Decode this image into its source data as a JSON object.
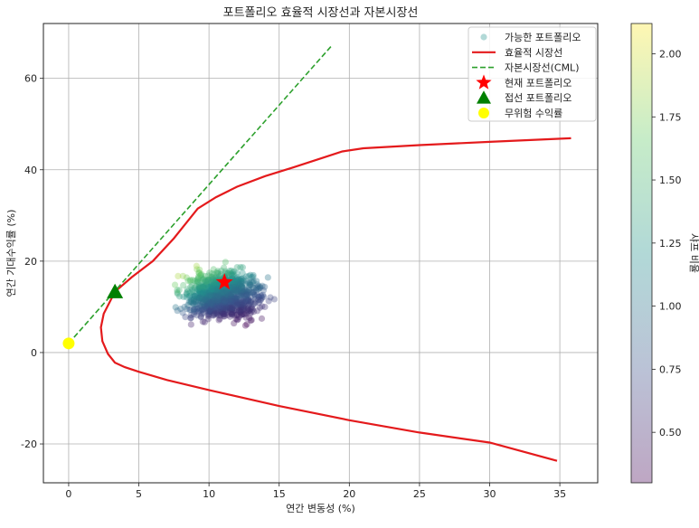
{
  "chart_data": {
    "type": "scatter",
    "title": "포트폴리오 효율적 시장선과 자본시장선",
    "xlabel": "연간 변동성 (%)",
    "ylabel": "연간 기대수익률 (%)",
    "xlim": [
      -1.8,
      37.7
    ],
    "ylim": [
      -28.5,
      72
    ],
    "xticks": [
      0,
      5,
      10,
      15,
      20,
      25,
      30,
      35
    ],
    "yticks": [
      -20,
      0,
      20,
      40,
      60
    ],
    "grid": true,
    "legend": {
      "placement": "top-right",
      "entries": [
        "가능한 포트폴리오",
        "효율적 시장선",
        "자본시장선(CML)",
        "현재 포트폴리오",
        "접선 포트폴리오",
        "무위험 수익률"
      ]
    },
    "colorbar": {
      "label": "샤프 비율",
      "range": [
        0.3,
        2.12
      ],
      "ticks": [
        "0.50",
        "0.75",
        "1.00",
        "1.25",
        "1.50",
        "1.75",
        "2.00"
      ],
      "colormap": "viridis"
    },
    "series": [
      {
        "name": "효율적 시장선",
        "type": "line",
        "color": "#e41a1c",
        "points": [
          [
            34.8,
            -23.7
          ],
          [
            30,
            -19.7
          ],
          [
            25,
            -17.5
          ],
          [
            20,
            -14.8
          ],
          [
            15,
            -11.7
          ],
          [
            10,
            -8.2
          ],
          [
            7,
            -6
          ],
          [
            5,
            -4.2
          ],
          [
            4,
            -3.2
          ],
          [
            3.3,
            -2.2
          ],
          [
            2.8,
            -0.3
          ],
          [
            2.4,
            2.5
          ],
          [
            2.3,
            5.5
          ],
          [
            2.5,
            8.5
          ],
          [
            3,
            11.5
          ],
          [
            3.3,
            13.3
          ],
          [
            4.5,
            16.5
          ],
          [
            6,
            20
          ],
          [
            7.5,
            25
          ],
          [
            9.2,
            31.5
          ],
          [
            10.5,
            34
          ],
          [
            12,
            36.3
          ],
          [
            14,
            38.6
          ],
          [
            16,
            40.5
          ],
          [
            18,
            42.5
          ],
          [
            19.5,
            44
          ],
          [
            21,
            44.7
          ],
          [
            25,
            45.4
          ],
          [
            30,
            46.1
          ],
          [
            35.8,
            46.9
          ]
        ]
      },
      {
        "name": "자본시장선(CML)",
        "type": "line",
        "style": "dashed",
        "color": "#2ca02c",
        "points": [
          [
            0,
            2
          ],
          [
            18.7,
            67
          ]
        ]
      },
      {
        "name": "현재 포트폴리오",
        "type": "marker",
        "marker": "star",
        "color": "#ff0000",
        "points": [
          [
            11.1,
            15.4
          ]
        ]
      },
      {
        "name": "접선 포트폴리오",
        "type": "marker",
        "marker": "triangle",
        "color": "#008000",
        "points": [
          [
            3.3,
            13.3
          ]
        ]
      },
      {
        "name": "무위험 수익률",
        "type": "marker",
        "marker": "circle",
        "color": "#ffff00",
        "points": [
          [
            0,
            2
          ]
        ]
      }
    ],
    "scatter_cloud": {
      "name": "가능한 포트폴리오",
      "count": 1000,
      "x_range": [
        7.2,
        15.5
      ],
      "y_range": [
        5.5,
        21
      ],
      "center": [
        11,
        12.5
      ],
      "opacity": 0.35
    }
  }
}
